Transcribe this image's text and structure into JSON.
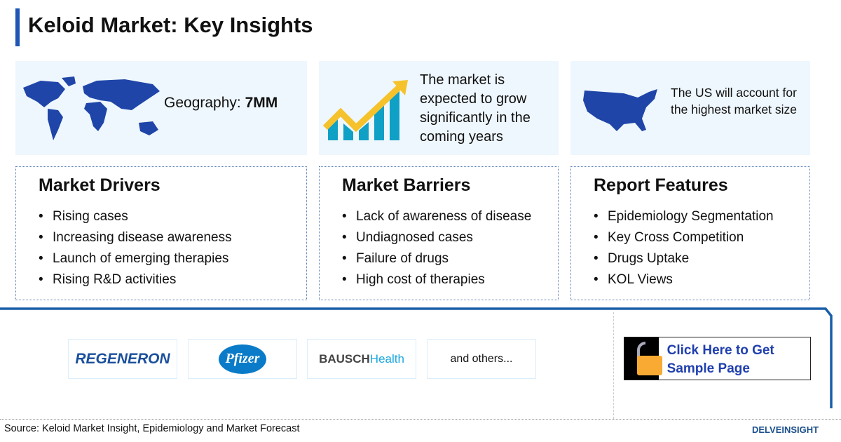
{
  "title": "Keloid Market: Key Insights",
  "insights": {
    "geography_label": "Geography: ",
    "geography_value": "7MM",
    "growth": "The market is expected to grow significantly in the coming years",
    "us": "The US will account for the highest market size"
  },
  "drivers": {
    "title": "Market Drivers",
    "items": [
      "Rising cases",
      "Increasing disease awareness",
      "Launch of emerging therapies",
      "Rising R&D activities"
    ]
  },
  "barriers": {
    "title": "Market Barriers",
    "items": [
      "Lack of awareness of disease",
      "Undiagnosed cases",
      "Failure of drugs",
      "High cost of therapies"
    ]
  },
  "features": {
    "title": "Report Features",
    "items": [
      "Epidemiology Segmentation",
      "Key Cross Competition",
      "Drugs Uptake",
      "KOL Views"
    ]
  },
  "companies": {
    "regeneron": "REGENERON",
    "pfizer": "Pfizer",
    "bausch_a": "BAUSCH",
    "bausch_b": "Health",
    "others": "and others..."
  },
  "cta": "Click Here to Get Sample Page",
  "source": "Source: Keloid Market Insight, Epidemiology and Market Forecast",
  "brand": "DELVEINSIGHT",
  "colors": {
    "accent": "#1f55b5",
    "box_bg": "#eef7fd",
    "cta_text": "#1f3fae",
    "lock": "#f8aa33"
  }
}
